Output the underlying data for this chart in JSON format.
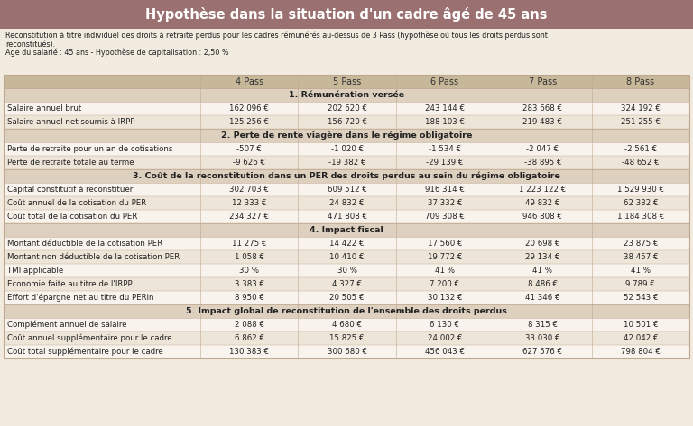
{
  "title": "Hypothèse dans la situation d'un cadre âgé de 45 ans",
  "subtitle_line1": "Reconstitution à titre individuel des droits à retraite perdus pour les cadres rémunérés au-dessus de 3 Pass (hypothèse où tous les droits perdus sont",
  "subtitle_line2": "reconstitués).",
  "subtitle_line3": "Age du salarié : 45 ans - Hypothèse de capitalisation : 2,50 %",
  "columns": [
    "",
    "4 Pass",
    "5 Pass",
    "6 Pass",
    "7 Pass",
    "8 Pass"
  ],
  "sections": [
    {
      "header": "1. Rémunération versée",
      "rows": [
        [
          "Salaire annuel brut",
          "162 096 €",
          "202 620 €",
          "243 144 €",
          "283 668 €",
          "324 192 €"
        ],
        [
          "Salaire annuel net soumis à IRPP",
          "125 256 €",
          "156 720 €",
          "188 103 €",
          "219 483 €",
          "251 255 €"
        ]
      ]
    },
    {
      "header": "2. Perte de rente viagère dans le régime obligatoire",
      "rows": [
        [
          "Perte de retraite pour un an de cotisations",
          "-507 €",
          "-1 020 €",
          "-1 534 €",
          "-2 047 €",
          "-2 561 €"
        ],
        [
          "Perte de retraite totale au terme",
          "-9 626 €",
          "-19 382 €",
          "-29 139 €",
          "-38 895 €",
          "-48 652 €"
        ]
      ]
    },
    {
      "header": "3. Coût de la reconstitution dans un PER des droits perdus au sein du régime obligatoire",
      "rows": [
        [
          "Capital constitutif à reconstituer",
          "302 703 €",
          "609 512 €",
          "916 314 €",
          "1 223 122 €",
          "1 529 930 €"
        ],
        [
          "Coût annuel de la cotisation du PER",
          "12 333 €",
          "24 832 €",
          "37 332 €",
          "49 832 €",
          "62 332 €"
        ],
        [
          "Coût total de la cotisation du PER",
          "234 327 €",
          "471 808 €",
          "709 308 €",
          "946 808 €",
          "1 184 308 €"
        ]
      ]
    },
    {
      "header": "4. Impact fiscal",
      "rows": [
        [
          "Montant déductible de la cotisation PER",
          "11 275 €",
          "14 422 €",
          "17 560 €",
          "20 698 €",
          "23 875 €"
        ],
        [
          "Montant non déductible de la cotisation PER",
          "1 058 €",
          "10 410 €",
          "19 772 €",
          "29 134 €",
          "38 457 €"
        ],
        [
          "TMI applicable",
          "30 %",
          "30 %",
          "41 %",
          "41 %",
          "41 %"
        ],
        [
          "Economie faite au titre de l'IRPP",
          "3 383 €",
          "4 327 €",
          "7 200 €",
          "8 486 €",
          "9 789 €"
        ],
        [
          "Effort d'épargne net au titre du PERin",
          "8 950 €",
          "20 505 €",
          "30 132 €",
          "41 346 €",
          "52 543 €"
        ]
      ]
    },
    {
      "header": "5. Impact global de reconstitution de l'ensemble des droits perdus",
      "rows": [
        [
          "Complément annuel de salaire",
          "2 088 €",
          "4 680 €",
          "6 130 €",
          "8 315 €",
          "10 501 €"
        ],
        [
          "Coût annuel supplémentaire pour le cadre",
          "6 862 €",
          "15 825 €",
          "24 002 €",
          "33 030 €",
          "42 042 €"
        ],
        [
          "Coût total supplémentaire pour le cadre",
          "130 383 €",
          "300 680 €",
          "456 043 €",
          "627 576 €",
          "798 804 €"
        ]
      ]
    }
  ],
  "title_bg": "#9B7070",
  "title_color": "#FFFFFF",
  "col_header_bg": "#C8B89A",
  "col_header_color": "#333333",
  "section_header_bg": "#DDD0BE",
  "section_header_color": "#222222",
  "row_bg_light": "#F8F3ED",
  "row_bg_medium": "#EDE5D8",
  "border_color": "#C0A890",
  "text_color": "#222222",
  "fig_bg": "#F2EBE0"
}
